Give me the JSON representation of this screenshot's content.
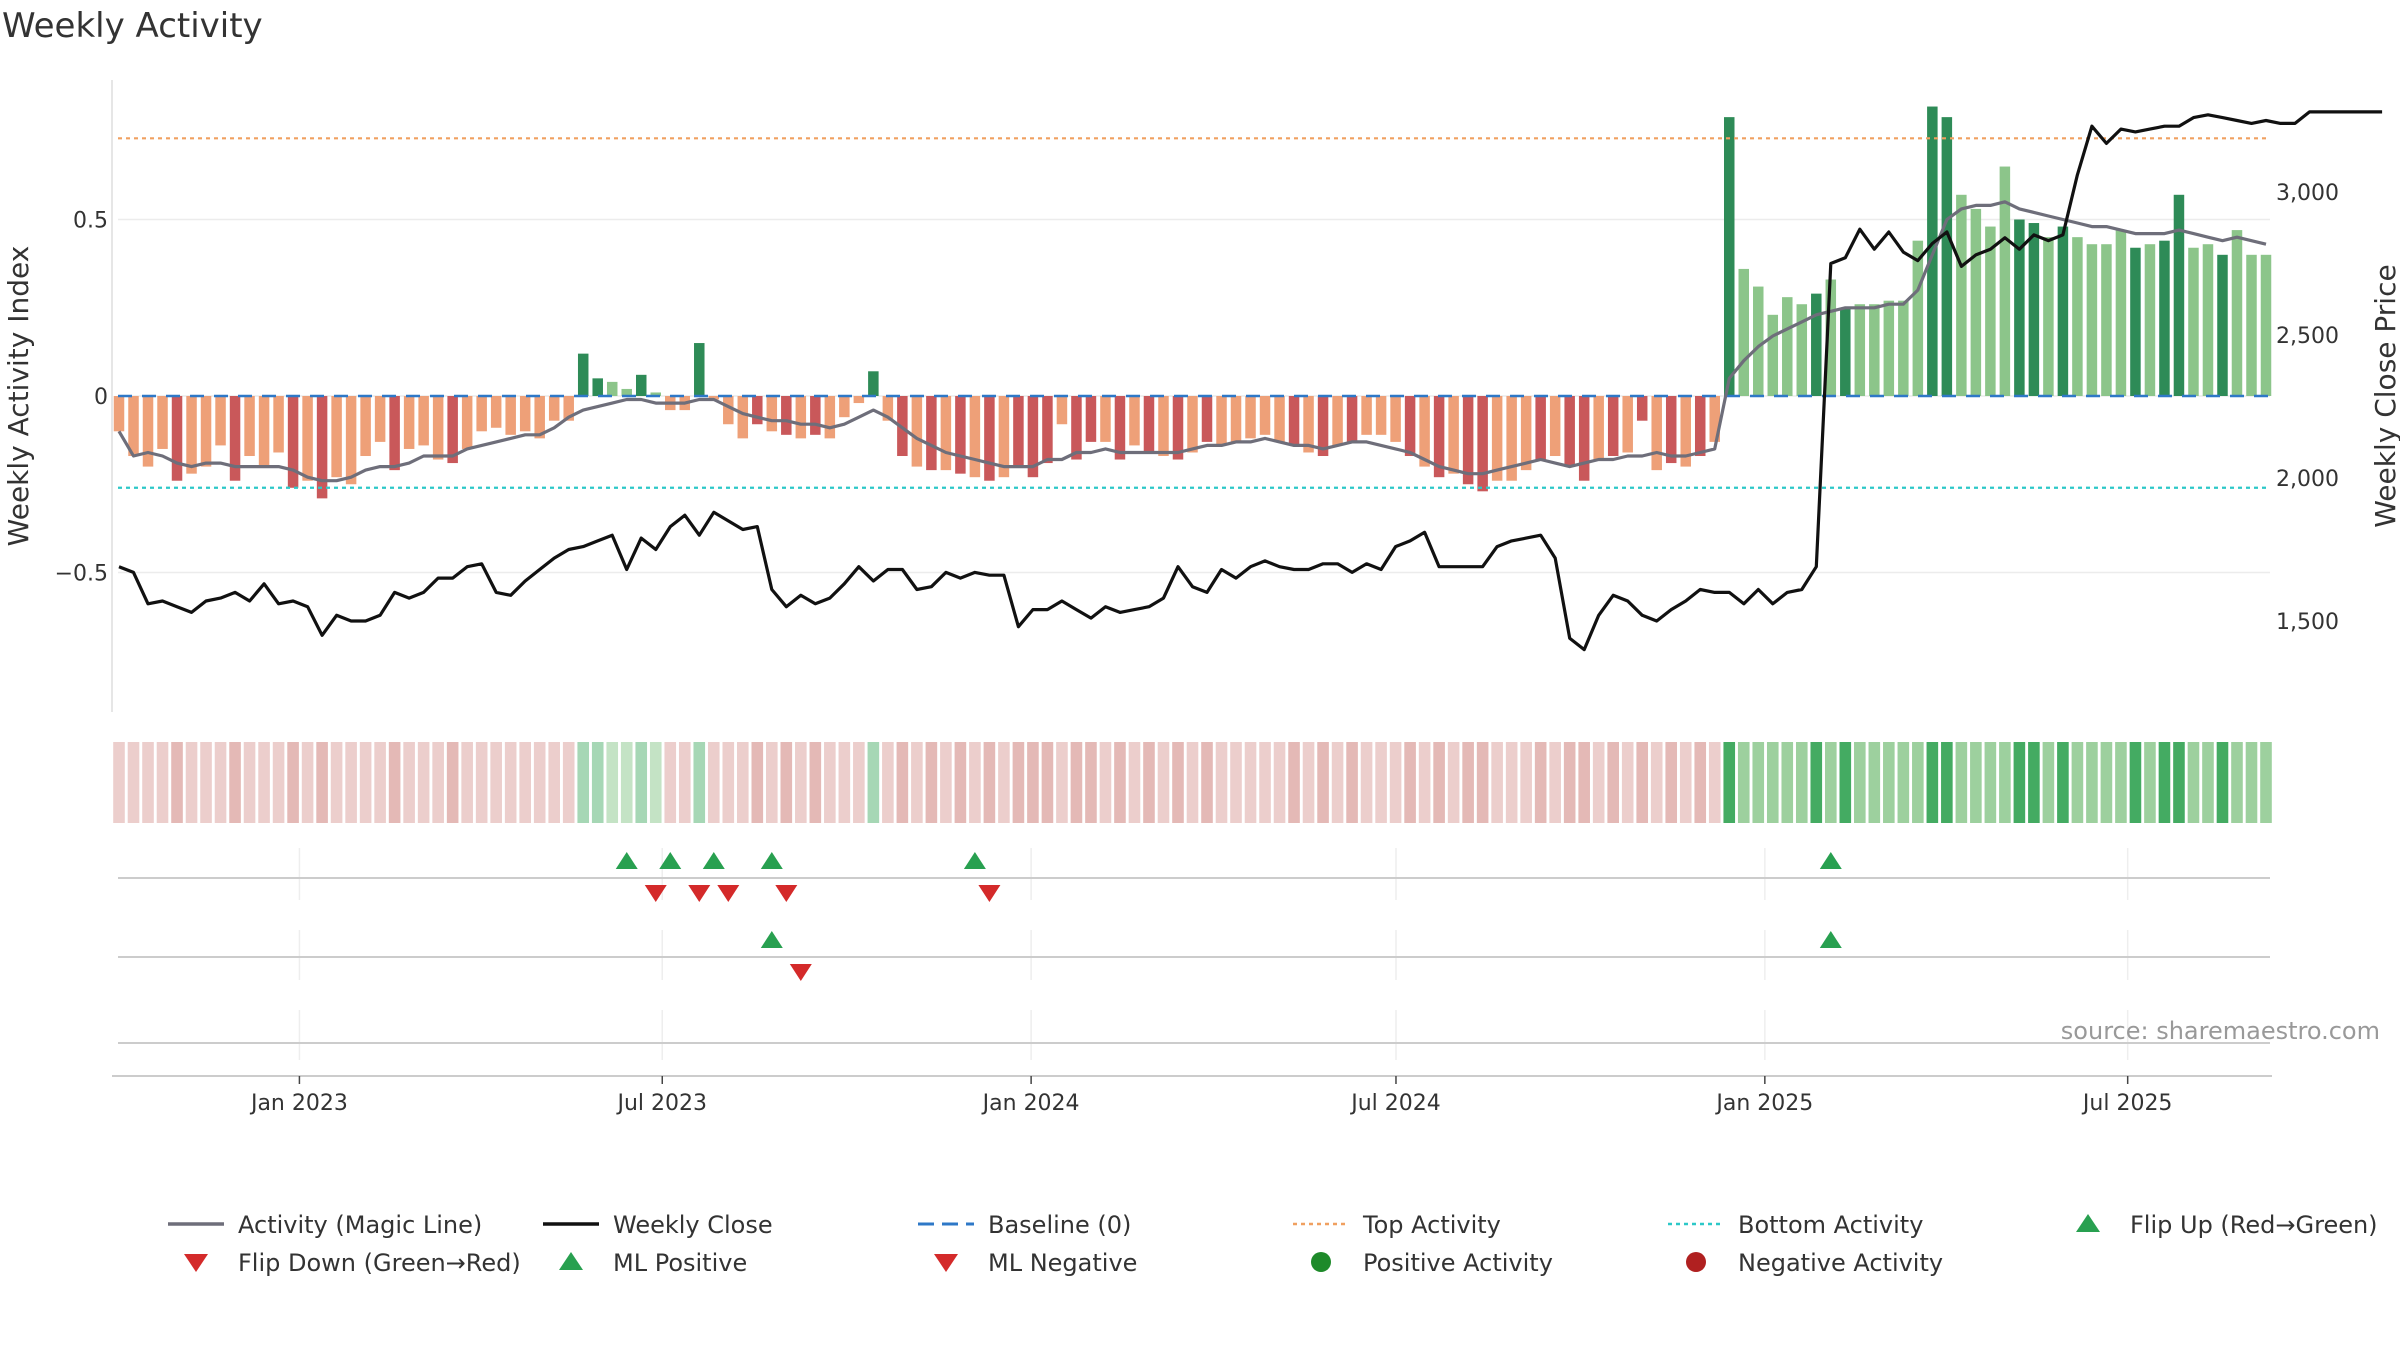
{
  "chart_data": {
    "type": "bar",
    "title": "Weekly Activity",
    "ylabel_left": "Weekly Activity Index",
    "ylabel_right": "Weekly Close Price",
    "source": "source: sharemaestro.com",
    "x_start": "2022-10-03",
    "x_end": "2025-09-08",
    "xticks": [
      {
        "label": "Jan 2023",
        "date": "2023-01-01"
      },
      {
        "label": "Jul 2023",
        "date": "2023-07-01"
      },
      {
        "label": "Jan 2024",
        "date": "2024-01-01"
      },
      {
        "label": "Jul 2024",
        "date": "2024-07-01"
      },
      {
        "label": "Jan 2025",
        "date": "2025-01-01"
      },
      {
        "label": "Jul 2025",
        "date": "2025-07-01"
      }
    ],
    "ylim_left": [
      -0.9,
      0.9
    ],
    "yticks_left": [
      {
        "label": "0.5",
        "value": 0.5
      },
      {
        "label": "0",
        "value": 0
      },
      {
        "label": "−0.5",
        "value": -0.5
      }
    ],
    "ylim_right": [
      1100,
      3400
    ],
    "yticks_right": [
      {
        "label": "3,000",
        "value": 3000
      },
      {
        "label": "2,500",
        "value": 2500
      },
      {
        "label": "2,000",
        "value": 2000
      },
      {
        "label": "1,500",
        "value": 1500
      }
    ],
    "top_activity": 0.73,
    "bottom_activity": -0.26,
    "activity": [
      -0.1,
      -0.17,
      -0.2,
      -0.15,
      -0.24,
      -0.22,
      -0.2,
      -0.14,
      -0.24,
      -0.17,
      -0.2,
      -0.16,
      -0.26,
      -0.24,
      -0.29,
      -0.23,
      -0.25,
      -0.17,
      -0.13,
      -0.21,
      -0.15,
      -0.14,
      -0.18,
      -0.19,
      -0.15,
      -0.1,
      -0.09,
      -0.11,
      -0.1,
      -0.12,
      -0.07,
      -0.07,
      0.12,
      0.05,
      0.04,
      0.02,
      0.06,
      0.01,
      -0.04,
      -0.04,
      0.15,
      -0.01,
      -0.08,
      -0.12,
      -0.08,
      -0.1,
      -0.11,
      -0.12,
      -0.11,
      -0.12,
      -0.06,
      -0.02,
      0.07,
      -0.07,
      -0.17,
      -0.2,
      -0.21,
      -0.21,
      -0.22,
      -0.23,
      -0.24,
      -0.23,
      -0.2,
      -0.23,
      -0.19,
      -0.08,
      -0.18,
      -0.13,
      -0.13,
      -0.18,
      -0.14,
      -0.16,
      -0.17,
      -0.18,
      -0.16,
      -0.13,
      -0.14,
      -0.13,
      -0.12,
      -0.11,
      -0.13,
      -0.14,
      -0.16,
      -0.17,
      -0.14,
      -0.13,
      -0.11,
      -0.11,
      -0.13,
      -0.17,
      -0.2,
      -0.23,
      -0.22,
      -0.25,
      -0.27,
      -0.24,
      -0.24,
      -0.21,
      -0.18,
      -0.17,
      -0.2,
      -0.24,
      -0.18,
      -0.17,
      -0.16,
      -0.07,
      -0.21,
      -0.19,
      -0.2,
      -0.17,
      -0.13,
      0.79,
      0.36,
      0.31,
      0.23,
      0.28,
      0.26,
      0.29,
      0.33,
      0.25,
      0.26,
      0.26,
      0.27,
      0.27,
      0.44,
      0.82,
      0.79,
      0.57,
      0.53,
      0.48,
      0.65,
      0.5,
      0.49,
      0.45,
      0.48,
      0.45,
      0.43,
      0.43,
      0.47,
      0.42,
      0.43,
      0.44,
      0.57,
      0.42,
      0.43,
      0.4,
      0.47,
      0.4,
      0.4
    ],
    "activity_dark": [
      0,
      0,
      0,
      0,
      1,
      0,
      0,
      0,
      1,
      0,
      0,
      0,
      1,
      0,
      1,
      0,
      0,
      0,
      0,
      1,
      0,
      0,
      0,
      1,
      0,
      0,
      0,
      0,
      0,
      0,
      0,
      0,
      1,
      1,
      0,
      0,
      1,
      0,
      0,
      0,
      1,
      0,
      0,
      0,
      1,
      0,
      1,
      0,
      1,
      0,
      0,
      0,
      1,
      0,
      1,
      0,
      1,
      0,
      1,
      0,
      1,
      0,
      1,
      1,
      1,
      0,
      1,
      1,
      0,
      1,
      0,
      1,
      0,
      1,
      0,
      1,
      0,
      0,
      0,
      0,
      0,
      1,
      0,
      1,
      0,
      1,
      0,
      0,
      0,
      1,
      0,
      1,
      0,
      1,
      1,
      0,
      0,
      0,
      1,
      0,
      1,
      1,
      0,
      1,
      0,
      1,
      0,
      1,
      0,
      1,
      0,
      1,
      0,
      0,
      0,
      0,
      0,
      1,
      0,
      1,
      0,
      0,
      0,
      0,
      0,
      1,
      1,
      0,
      0,
      0,
      0,
      1,
      1,
      0,
      1,
      0,
      0,
      0,
      0,
      1,
      0,
      1,
      1,
      0,
      0,
      1,
      0,
      0
    ],
    "magic_line": [
      -0.1,
      -0.17,
      -0.16,
      -0.17,
      -0.19,
      -0.2,
      -0.19,
      -0.19,
      -0.2,
      -0.2,
      -0.2,
      -0.2,
      -0.21,
      -0.23,
      -0.24,
      -0.24,
      -0.23,
      -0.21,
      -0.2,
      -0.2,
      -0.19,
      -0.17,
      -0.17,
      -0.17,
      -0.15,
      -0.14,
      -0.13,
      -0.12,
      -0.11,
      -0.11,
      -0.09,
      -0.06,
      -0.04,
      -0.03,
      -0.02,
      -0.01,
      -0.01,
      -0.02,
      -0.02,
      -0.02,
      -0.01,
      -0.01,
      -0.03,
      -0.05,
      -0.06,
      -0.07,
      -0.07,
      -0.08,
      -0.08,
      -0.09,
      -0.08,
      -0.06,
      -0.04,
      -0.06,
      -0.09,
      -0.12,
      -0.14,
      -0.16,
      -0.17,
      -0.18,
      -0.19,
      -0.2,
      -0.2,
      -0.2,
      -0.18,
      -0.18,
      -0.16,
      -0.16,
      -0.15,
      -0.16,
      -0.16,
      -0.16,
      -0.16,
      -0.16,
      -0.15,
      -0.14,
      -0.14,
      -0.13,
      -0.13,
      -0.12,
      -0.13,
      -0.14,
      -0.14,
      -0.15,
      -0.14,
      -0.13,
      -0.13,
      -0.14,
      -0.15,
      -0.16,
      -0.18,
      -0.2,
      -0.21,
      -0.22,
      -0.22,
      -0.21,
      -0.2,
      -0.19,
      -0.18,
      -0.19,
      -0.2,
      -0.19,
      -0.18,
      -0.18,
      -0.17,
      -0.17,
      -0.16,
      -0.17,
      -0.17,
      -0.16,
      -0.15,
      0.05,
      0.1,
      0.14,
      0.17,
      0.19,
      0.21,
      0.23,
      0.24,
      0.25,
      0.25,
      0.25,
      0.26,
      0.26,
      0.3,
      0.4,
      0.5,
      0.53,
      0.54,
      0.54,
      0.55,
      0.53,
      0.52,
      0.51,
      0.5,
      0.49,
      0.48,
      0.48,
      0.47,
      0.46,
      0.46,
      0.46,
      0.47,
      0.46,
      0.45,
      0.44,
      0.45,
      0.44,
      0.43
    ],
    "weekly_close": [
      1690,
      1670,
      1560,
      1570,
      1550,
      1530,
      1570,
      1580,
      1600,
      1570,
      1630,
      1560,
      1570,
      1550,
      1450,
      1520,
      1500,
      1500,
      1520,
      1600,
      1580,
      1600,
      1650,
      1650,
      1690,
      1700,
      1600,
      1590,
      1640,
      1680,
      1720,
      1750,
      1760,
      1780,
      1800,
      1680,
      1790,
      1750,
      1830,
      1870,
      1800,
      1880,
      1850,
      1820,
      1830,
      1610,
      1550,
      1590,
      1560,
      1580,
      1630,
      1690,
      1640,
      1680,
      1680,
      1610,
      1620,
      1670,
      1650,
      1670,
      1660,
      1660,
      1480,
      1540,
      1540,
      1570,
      1540,
      1510,
      1550,
      1530,
      1540,
      1550,
      1580,
      1690,
      1620,
      1600,
      1680,
      1650,
      1690,
      1710,
      1690,
      1680,
      1680,
      1700,
      1700,
      1670,
      1700,
      1680,
      1760,
      1780,
      1810,
      1690,
      1690,
      1690,
      1690,
      1760,
      1780,
      1790,
      1800,
      1720,
      1440,
      1400,
      1520,
      1590,
      1570,
      1520,
      1500,
      1540,
      1570,
      1610,
      1600,
      1600,
      1560,
      1610,
      1560,
      1600,
      1610,
      1690,
      2750,
      2770,
      2870,
      2800,
      2860,
      2790,
      2760,
      2820,
      2860,
      2740,
      2780,
      2800,
      2840,
      2800,
      2850,
      2830,
      2850,
      3060,
      3230,
      3170,
      3220,
      3210,
      3220,
      3230,
      3230,
      3260,
      3270,
      3260,
      3250,
      3240,
      3250,
      3240,
      3240,
      3280,
      3280,
      3280,
      3280,
      3280,
      3280
    ],
    "flip_up": [
      35,
      38,
      41,
      45,
      59,
      118
    ],
    "flip_down": [
      37,
      40,
      42,
      46,
      60
    ],
    "ml_positive": [
      45,
      118
    ],
    "ml_negative": [
      47
    ],
    "legend": [
      {
        "label": "Activity (Magic Line)",
        "symbol": "line",
        "color": "#6e6e7a"
      },
      {
        "label": "Weekly Close",
        "symbol": "line",
        "color": "#111111"
      },
      {
        "label": "Baseline (0)",
        "symbol": "dash",
        "color": "#2e78c7"
      },
      {
        "label": "Top Activity",
        "symbol": "dot",
        "color": "#f0a060"
      },
      {
        "label": "Bottom Activity",
        "symbol": "dot",
        "color": "#2cc8c8"
      },
      {
        "label": "Flip Up (Red→Green)",
        "symbol": "tri-up",
        "color": "#28a050"
      },
      {
        "label": "Flip Down (Green→Red)",
        "symbol": "tri-down",
        "color": "#d42a2a"
      },
      {
        "label": "ML Positive",
        "symbol": "tri-up",
        "color": "#28a050"
      },
      {
        "label": "ML Negative",
        "symbol": "tri-down",
        "color": "#d42a2a"
      },
      {
        "label": "Positive Activity",
        "symbol": "circle",
        "color": "#1e8a2a"
      },
      {
        "label": "Negative Activity",
        "symbol": "circle",
        "color": "#b02020"
      }
    ],
    "colors": {
      "green_dark": "#2e8b57",
      "green_light": "#8cc58a",
      "red_dark": "#c9585a",
      "red_light": "#eea078",
      "magic_line": "#6e6e7a",
      "close": "#111111",
      "baseline": "#2e78c7",
      "top": "#f0a060",
      "bottom": "#2cc8c8",
      "up": "#28a050",
      "down": "#d42a2a"
    }
  }
}
